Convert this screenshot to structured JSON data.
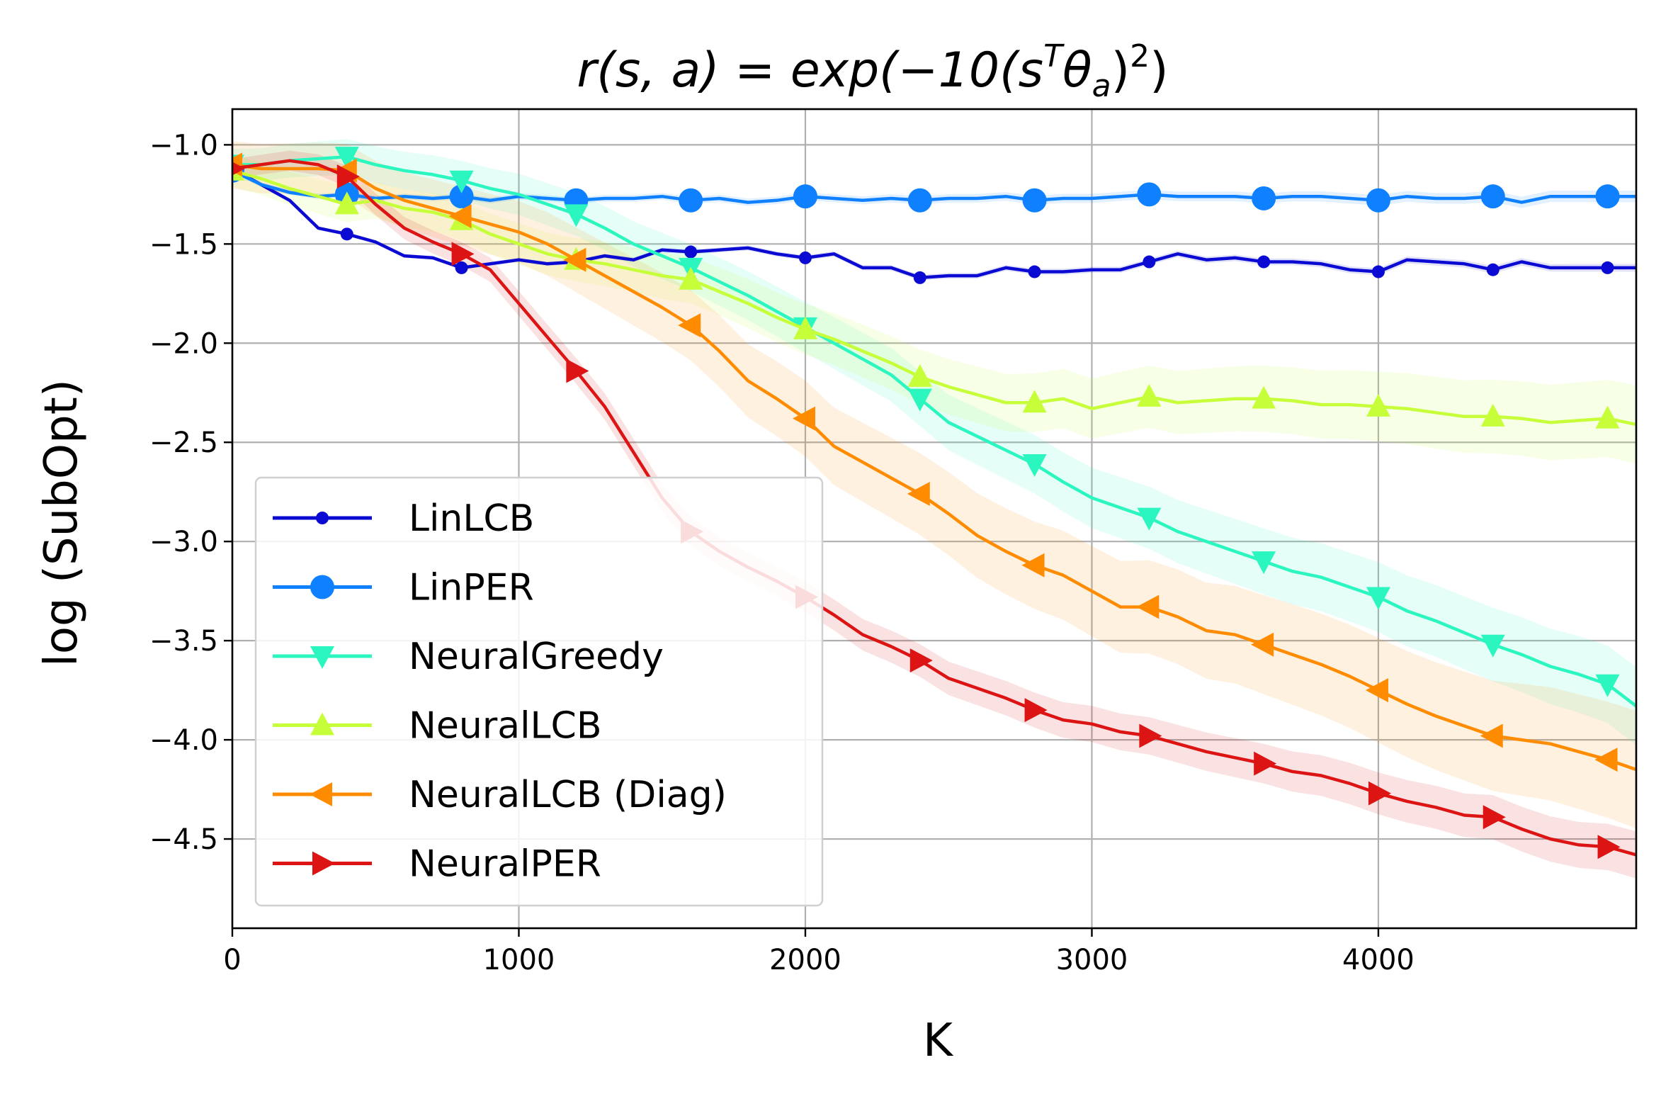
{
  "chart_data": {
    "type": "line",
    "title": "r(s, a) = exp(−10(sᵀθₐ)²)",
    "title_parts": {
      "main": "r(s, a) = exp(−10(s",
      "sup1": "T",
      "theta": "θ",
      "sub": "a",
      "close": ")",
      "sup2": "2",
      "end": ")"
    },
    "xlabel": "K",
    "ylabel": "log (SubOpt)",
    "xlim": [
      0,
      4900
    ],
    "ylim": [
      -4.95,
      -0.82
    ],
    "xticks": [
      0,
      1000,
      2000,
      3000,
      4000
    ],
    "xtick_labels": [
      "0",
      "1000",
      "2000",
      "3000",
      "4000"
    ],
    "yticks": [
      -1.0,
      -1.5,
      -2.0,
      -2.5,
      -3.0,
      -3.5,
      -4.0,
      -4.5
    ],
    "ytick_labels": [
      "−1.0",
      "−1.5",
      "−2.0",
      "−2.5",
      "−3.0",
      "−3.5",
      "−4.0",
      "−4.5"
    ],
    "grid": true,
    "legend_position": "lower-left",
    "series": [
      {
        "name": "LinLCB",
        "color": "#0a0ad2",
        "marker": "small-circle",
        "band": 0.02,
        "x": [
          0,
          100,
          200,
          300,
          400,
          500,
          600,
          700,
          800,
          900,
          1000,
          1100,
          1200,
          1300,
          1400,
          1500,
          1600,
          1700,
          1800,
          1900,
          2000,
          2100,
          2200,
          2300,
          2400,
          2500,
          2600,
          2700,
          2800,
          2900,
          3000,
          3100,
          3200,
          3300,
          3400,
          3500,
          3600,
          3700,
          3800,
          3900,
          4000,
          4100,
          4200,
          4300,
          4400,
          4500,
          4600,
          4700,
          4800,
          4900
        ],
        "y": [
          -1.12,
          -1.2,
          -1.28,
          -1.42,
          -1.45,
          -1.49,
          -1.56,
          -1.57,
          -1.62,
          -1.6,
          -1.58,
          -1.6,
          -1.59,
          -1.56,
          -1.58,
          -1.53,
          -1.54,
          -1.53,
          -1.52,
          -1.55,
          -1.57,
          -1.55,
          -1.62,
          -1.62,
          -1.67,
          -1.66,
          -1.66,
          -1.62,
          -1.64,
          -1.64,
          -1.63,
          -1.63,
          -1.59,
          -1.55,
          -1.58,
          -1.57,
          -1.59,
          -1.59,
          -1.6,
          -1.63,
          -1.64,
          -1.58,
          -1.59,
          -1.6,
          -1.63,
          -1.59,
          -1.62,
          -1.62,
          -1.62,
          -1.62
        ],
        "markers_x": [
          0,
          400,
          800,
          1200,
          1600,
          2000,
          2400,
          2800,
          3200,
          3600,
          4000,
          4400,
          4800
        ]
      },
      {
        "name": "LinPER",
        "color": "#0f80ff",
        "marker": "circle",
        "band": 0.03,
        "x": [
          0,
          100,
          200,
          300,
          400,
          500,
          600,
          700,
          800,
          900,
          1000,
          1100,
          1200,
          1300,
          1400,
          1500,
          1600,
          1700,
          1800,
          1900,
          2000,
          2100,
          2200,
          2300,
          2400,
          2500,
          2600,
          2700,
          2800,
          2900,
          3000,
          3100,
          3200,
          3300,
          3400,
          3500,
          3600,
          3700,
          3800,
          3900,
          4000,
          4100,
          4200,
          4300,
          4400,
          4500,
          4600,
          4700,
          4800,
          4900
        ],
        "y": [
          -1.13,
          -1.2,
          -1.24,
          -1.26,
          -1.25,
          -1.27,
          -1.26,
          -1.27,
          -1.26,
          -1.28,
          -1.26,
          -1.27,
          -1.28,
          -1.27,
          -1.27,
          -1.26,
          -1.28,
          -1.27,
          -1.29,
          -1.28,
          -1.26,
          -1.27,
          -1.28,
          -1.27,
          -1.28,
          -1.27,
          -1.27,
          -1.26,
          -1.28,
          -1.27,
          -1.27,
          -1.26,
          -1.25,
          -1.26,
          -1.26,
          -1.26,
          -1.27,
          -1.26,
          -1.26,
          -1.27,
          -1.28,
          -1.26,
          -1.27,
          -1.27,
          -1.26,
          -1.29,
          -1.26,
          -1.26,
          -1.26,
          -1.26
        ],
        "markers_x": [
          0,
          400,
          800,
          1200,
          1600,
          2000,
          2400,
          2800,
          3200,
          3600,
          4000,
          4400,
          4800
        ]
      },
      {
        "name": "NeuralGreedy",
        "color": "#2cf6c0",
        "marker": "triangle-down",
        "band": 0.2,
        "x": [
          0,
          100,
          200,
          300,
          400,
          500,
          600,
          700,
          800,
          900,
          1000,
          1100,
          1200,
          1300,
          1400,
          1500,
          1600,
          1700,
          1800,
          1900,
          2000,
          2100,
          2200,
          2300,
          2400,
          2500,
          2600,
          2700,
          2800,
          2900,
          3000,
          3100,
          3200,
          3300,
          3400,
          3500,
          3600,
          3700,
          3800,
          3900,
          4000,
          4100,
          4200,
          4300,
          4400,
          4500,
          4600,
          4700,
          4800,
          4900
        ],
        "y": [
          -1.1,
          -1.1,
          -1.08,
          -1.07,
          -1.06,
          -1.1,
          -1.13,
          -1.15,
          -1.18,
          -1.22,
          -1.25,
          -1.3,
          -1.35,
          -1.42,
          -1.5,
          -1.56,
          -1.62,
          -1.69,
          -1.76,
          -1.84,
          -1.92,
          -2.0,
          -2.08,
          -2.16,
          -2.28,
          -2.4,
          -2.47,
          -2.54,
          -2.61,
          -2.7,
          -2.78,
          -2.83,
          -2.88,
          -2.95,
          -3.0,
          -3.05,
          -3.1,
          -3.15,
          -3.18,
          -3.23,
          -3.28,
          -3.35,
          -3.4,
          -3.46,
          -3.52,
          -3.57,
          -3.63,
          -3.67,
          -3.72,
          -3.83
        ],
        "markers_x": [
          0,
          400,
          800,
          1200,
          1600,
          2000,
          2400,
          2800,
          3200,
          3600,
          4000,
          4400,
          4800
        ]
      },
      {
        "name": "NeuralLCB",
        "color": "#c6ff3a",
        "marker": "triangle-up",
        "band": 0.2,
        "x": [
          0,
          100,
          200,
          300,
          400,
          500,
          600,
          700,
          800,
          900,
          1000,
          1100,
          1200,
          1300,
          1400,
          1500,
          1600,
          1700,
          1800,
          1900,
          2000,
          2100,
          2200,
          2300,
          2400,
          2500,
          2600,
          2700,
          2800,
          2900,
          3000,
          3100,
          3200,
          3300,
          3400,
          3500,
          3600,
          3700,
          3800,
          3900,
          4000,
          4100,
          4200,
          4300,
          4400,
          4500,
          4600,
          4700,
          4800,
          4900
        ],
        "y": [
          -1.13,
          -1.17,
          -1.22,
          -1.26,
          -1.3,
          -1.28,
          -1.32,
          -1.34,
          -1.38,
          -1.45,
          -1.5,
          -1.55,
          -1.58,
          -1.6,
          -1.63,
          -1.66,
          -1.68,
          -1.74,
          -1.8,
          -1.87,
          -1.93,
          -1.98,
          -2.04,
          -2.1,
          -2.17,
          -2.22,
          -2.26,
          -2.3,
          -2.3,
          -2.28,
          -2.33,
          -2.3,
          -2.27,
          -2.3,
          -2.29,
          -2.28,
          -2.28,
          -2.29,
          -2.31,
          -2.31,
          -2.32,
          -2.33,
          -2.35,
          -2.37,
          -2.37,
          -2.38,
          -2.4,
          -2.39,
          -2.38,
          -2.41
        ],
        "markers_x": [
          0,
          400,
          800,
          1200,
          1600,
          2000,
          2400,
          2800,
          3200,
          3600,
          4000,
          4400,
          4800
        ]
      },
      {
        "name": "NeuralLCB (Diag)",
        "color": "#ff8c00",
        "marker": "triangle-left",
        "band": 0.3,
        "x": [
          0,
          100,
          200,
          300,
          400,
          500,
          600,
          700,
          800,
          900,
          1000,
          1100,
          1200,
          1300,
          1400,
          1500,
          1600,
          1700,
          1800,
          1900,
          2000,
          2100,
          2200,
          2300,
          2400,
          2500,
          2600,
          2700,
          2800,
          2900,
          3000,
          3100,
          3200,
          3300,
          3400,
          3500,
          3600,
          3700,
          3800,
          3900,
          4000,
          4100,
          4200,
          4300,
          4400,
          4500,
          4600,
          4700,
          4800,
          4900
        ],
        "y": [
          -1.1,
          -1.12,
          -1.12,
          -1.12,
          -1.13,
          -1.22,
          -1.28,
          -1.32,
          -1.36,
          -1.4,
          -1.44,
          -1.5,
          -1.58,
          -1.66,
          -1.74,
          -1.82,
          -1.91,
          -2.04,
          -2.19,
          -2.28,
          -2.38,
          -2.52,
          -2.6,
          -2.68,
          -2.76,
          -2.86,
          -2.97,
          -3.05,
          -3.12,
          -3.17,
          -3.25,
          -3.33,
          -3.33,
          -3.38,
          -3.45,
          -3.47,
          -3.52,
          -3.57,
          -3.62,
          -3.68,
          -3.75,
          -3.82,
          -3.88,
          -3.93,
          -3.98,
          -4.0,
          -4.02,
          -4.06,
          -4.1,
          -4.15
        ],
        "markers_x": [
          0,
          400,
          800,
          1200,
          1600,
          2000,
          2400,
          2800,
          3200,
          3600,
          4000,
          4400,
          4800
        ]
      },
      {
        "name": "NeuralPER",
        "color": "#dc1414",
        "marker": "triangle-right",
        "band": 0.12,
        "x": [
          0,
          100,
          200,
          300,
          400,
          500,
          600,
          700,
          800,
          900,
          1000,
          1100,
          1200,
          1300,
          1400,
          1500,
          1600,
          1700,
          1800,
          1900,
          2000,
          2100,
          2200,
          2300,
          2400,
          2500,
          2600,
          2700,
          2800,
          2900,
          3000,
          3100,
          3200,
          3300,
          3400,
          3500,
          3600,
          3700,
          3800,
          3900,
          4000,
          4100,
          4200,
          4300,
          4400,
          4500,
          4600,
          4700,
          4800,
          4900
        ],
        "y": [
          -1.12,
          -1.1,
          -1.08,
          -1.1,
          -1.16,
          -1.3,
          -1.42,
          -1.49,
          -1.55,
          -1.63,
          -1.8,
          -1.97,
          -2.14,
          -2.32,
          -2.55,
          -2.78,
          -2.95,
          -3.05,
          -3.13,
          -3.2,
          -3.28,
          -3.37,
          -3.47,
          -3.53,
          -3.6,
          -3.69,
          -3.74,
          -3.79,
          -3.85,
          -3.9,
          -3.92,
          -3.96,
          -3.98,
          -4.02,
          -4.06,
          -4.09,
          -4.12,
          -4.16,
          -4.18,
          -4.22,
          -4.27,
          -4.31,
          -4.34,
          -4.38,
          -4.39,
          -4.45,
          -4.5,
          -4.53,
          -4.54,
          -4.58
        ],
        "markers_x": [
          0,
          400,
          800,
          1200,
          1600,
          2000,
          2400,
          2800,
          3200,
          3600,
          4000,
          4400,
          4800
        ]
      }
    ]
  }
}
